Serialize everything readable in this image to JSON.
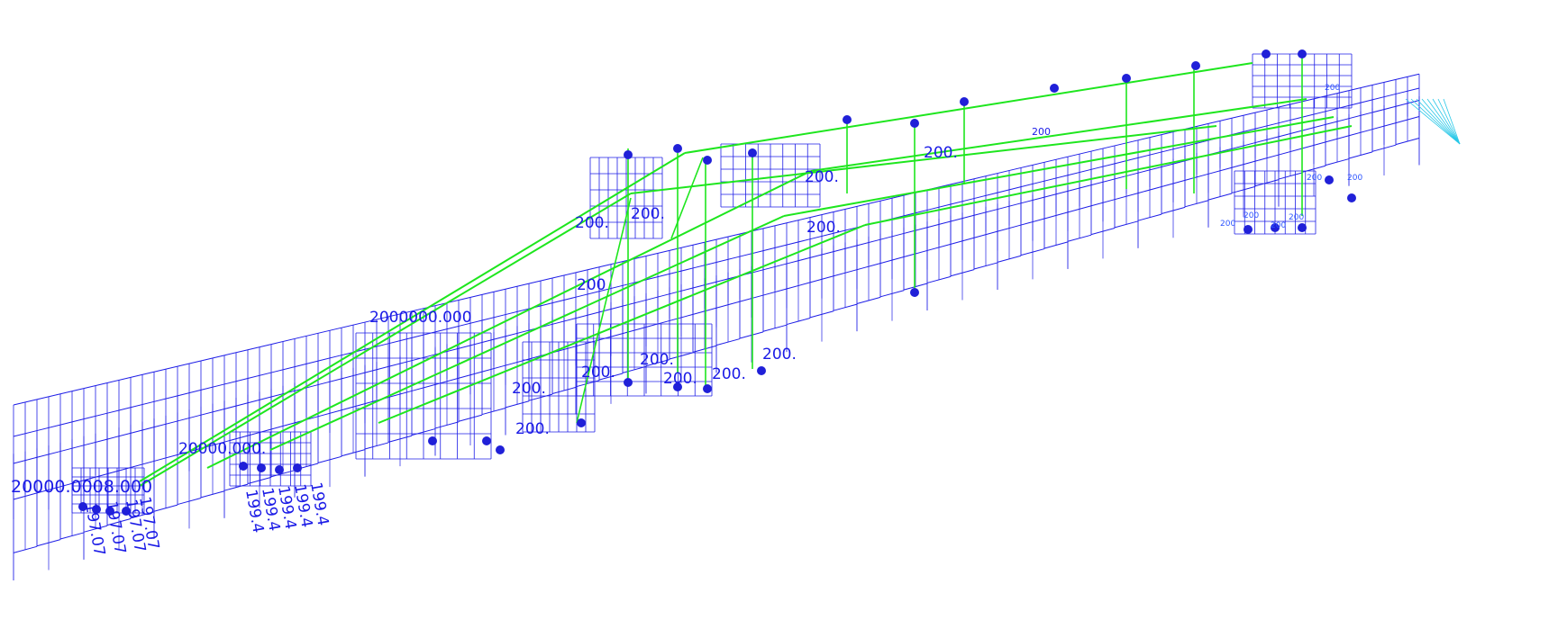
{
  "colors": {
    "frame": "#1e1ee6",
    "beam": "#1ee61e",
    "node": "#2020d8",
    "accent_cyan": "#28c8e8",
    "background": "#ffffff"
  },
  "labels": {
    "val_200": "200.",
    "val_200_plain": "200",
    "val_19907": "197.07",
    "val_19904": "199.4",
    "val_20000": "20000",
    "left_group": "20000.0008.000",
    "mid_group": "20000.000.",
    "upper_group": "2000000.000",
    "small_200": "200"
  }
}
